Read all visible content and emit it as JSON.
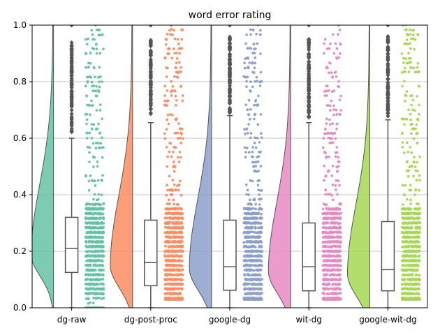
{
  "chart_data": {
    "type": "raincloud",
    "title": "word error rating",
    "xlabel": "",
    "ylabel": "",
    "ylim": [
      0,
      1.0
    ],
    "yticks": [
      0.0,
      0.2,
      0.4,
      0.6,
      0.8,
      1.0
    ],
    "ytick_labels": [
      "0.0",
      "0.2",
      "0.4",
      "0.6",
      "0.8",
      "1.0"
    ],
    "grid": "y",
    "categories": [
      "dg-raw",
      "dg-post-proc",
      "google-dg",
      "wit-dg",
      "google-wit-dg"
    ],
    "series": [
      {
        "name": "dg-raw",
        "color": "#66c2a5",
        "box": {
          "whisker_low": 0.0,
          "q1": 0.125,
          "median": 0.21,
          "q3": 0.32,
          "whisker_high": 0.6
        },
        "density_peak": 0.19,
        "outliers_from": 0.62,
        "outliers_to": 0.94,
        "jitter_range": [
          0.0,
          1.0
        ]
      },
      {
        "name": "dg-post-proc",
        "color": "#fc8d62",
        "box": {
          "whisker_low": 0.0,
          "q1": 0.078,
          "median": 0.16,
          "q3": 0.31,
          "whisker_high": 0.655
        },
        "density_peak": 0.15,
        "outliers_from": 0.67,
        "outliers_to": 0.95,
        "jitter_range": [
          0.03,
          1.0
        ]
      },
      {
        "name": "google-dg",
        "color": "#8da0cb",
        "box": {
          "whisker_low": 0.0,
          "q1": 0.062,
          "median": 0.145,
          "q3": 0.31,
          "whisker_high": 0.68
        },
        "density_peak": 0.14,
        "outliers_from": 0.69,
        "outliers_to": 0.96,
        "jitter_range": [
          0.03,
          1.0
        ]
      },
      {
        "name": "wit-dg",
        "color": "#e78ac3",
        "box": {
          "whisker_low": 0.0,
          "q1": 0.06,
          "median": 0.145,
          "q3": 0.3,
          "whisker_high": 0.655
        },
        "density_peak": 0.13,
        "outliers_from": 0.67,
        "outliers_to": 0.95,
        "jitter_range": [
          0.03,
          1.0
        ]
      },
      {
        "name": "google-wit-dg",
        "color": "#a6d854",
        "box": {
          "whisker_low": 0.0,
          "q1": 0.06,
          "median": 0.135,
          "q3": 0.305,
          "whisker_high": 0.665
        },
        "density_peak": 0.12,
        "outliers_from": 0.675,
        "outliers_to": 0.96,
        "jitter_range": [
          0.03,
          1.0
        ]
      }
    ]
  }
}
